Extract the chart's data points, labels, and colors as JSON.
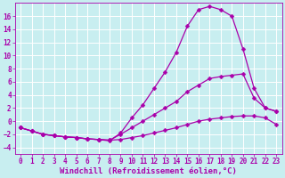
{
  "background_color": "#c8eef0",
  "grid_color": "#ffffff",
  "line_color": "#aa00aa",
  "xlabel": "Windchill (Refroidissement éolien,°C)",
  "xlabel_fontsize": 6.5,
  "tick_fontsize": 5.5,
  "xlim": [
    -0.5,
    23.5
  ],
  "ylim": [
    -5,
    18
  ],
  "yticks": [
    -4,
    -2,
    0,
    2,
    4,
    6,
    8,
    10,
    12,
    14,
    16
  ],
  "xticks": [
    0,
    1,
    2,
    3,
    4,
    5,
    6,
    7,
    8,
    9,
    10,
    11,
    12,
    13,
    14,
    15,
    16,
    17,
    18,
    19,
    20,
    21,
    22,
    23
  ],
  "line1_x": [
    0,
    1,
    2,
    3,
    4,
    5,
    6,
    7,
    8,
    9,
    10,
    11,
    12,
    13,
    14,
    15,
    16,
    17,
    18,
    19,
    20,
    21,
    22,
    23
  ],
  "line1_y": [
    -1.0,
    -1.5,
    -2.0,
    -2.2,
    -2.4,
    -2.5,
    -2.7,
    -2.8,
    -2.9,
    -2.8,
    -2.5,
    -2.2,
    -1.8,
    -1.4,
    -1.0,
    -0.5,
    0.0,
    0.3,
    0.5,
    0.7,
    0.8,
    0.8,
    0.5,
    -0.5
  ],
  "line2_x": [
    0,
    1,
    2,
    3,
    4,
    5,
    6,
    7,
    8,
    9,
    10,
    11,
    12,
    13,
    14,
    15,
    16,
    17,
    18,
    19,
    20,
    21,
    22,
    23
  ],
  "line2_y": [
    -1.0,
    -1.5,
    -2.0,
    -2.2,
    -2.4,
    -2.5,
    -2.7,
    -2.8,
    -2.9,
    -2.0,
    -1.0,
    0.0,
    1.0,
    2.0,
    3.0,
    4.5,
    5.5,
    6.5,
    6.8,
    7.0,
    7.2,
    3.5,
    2.0,
    1.5
  ],
  "line3_x": [
    0,
    1,
    2,
    3,
    4,
    5,
    6,
    7,
    8,
    9,
    10,
    11,
    12,
    13,
    14,
    15,
    16,
    17,
    18,
    19,
    20,
    21,
    22,
    23
  ],
  "line3_y": [
    -1.0,
    -1.5,
    -2.0,
    -2.2,
    -2.4,
    -2.5,
    -2.7,
    -2.8,
    -3.0,
    -1.8,
    0.5,
    2.5,
    5.0,
    7.5,
    10.5,
    14.5,
    17.0,
    17.5,
    17.0,
    16.0,
    11.0,
    5.0,
    2.0,
    1.5
  ]
}
